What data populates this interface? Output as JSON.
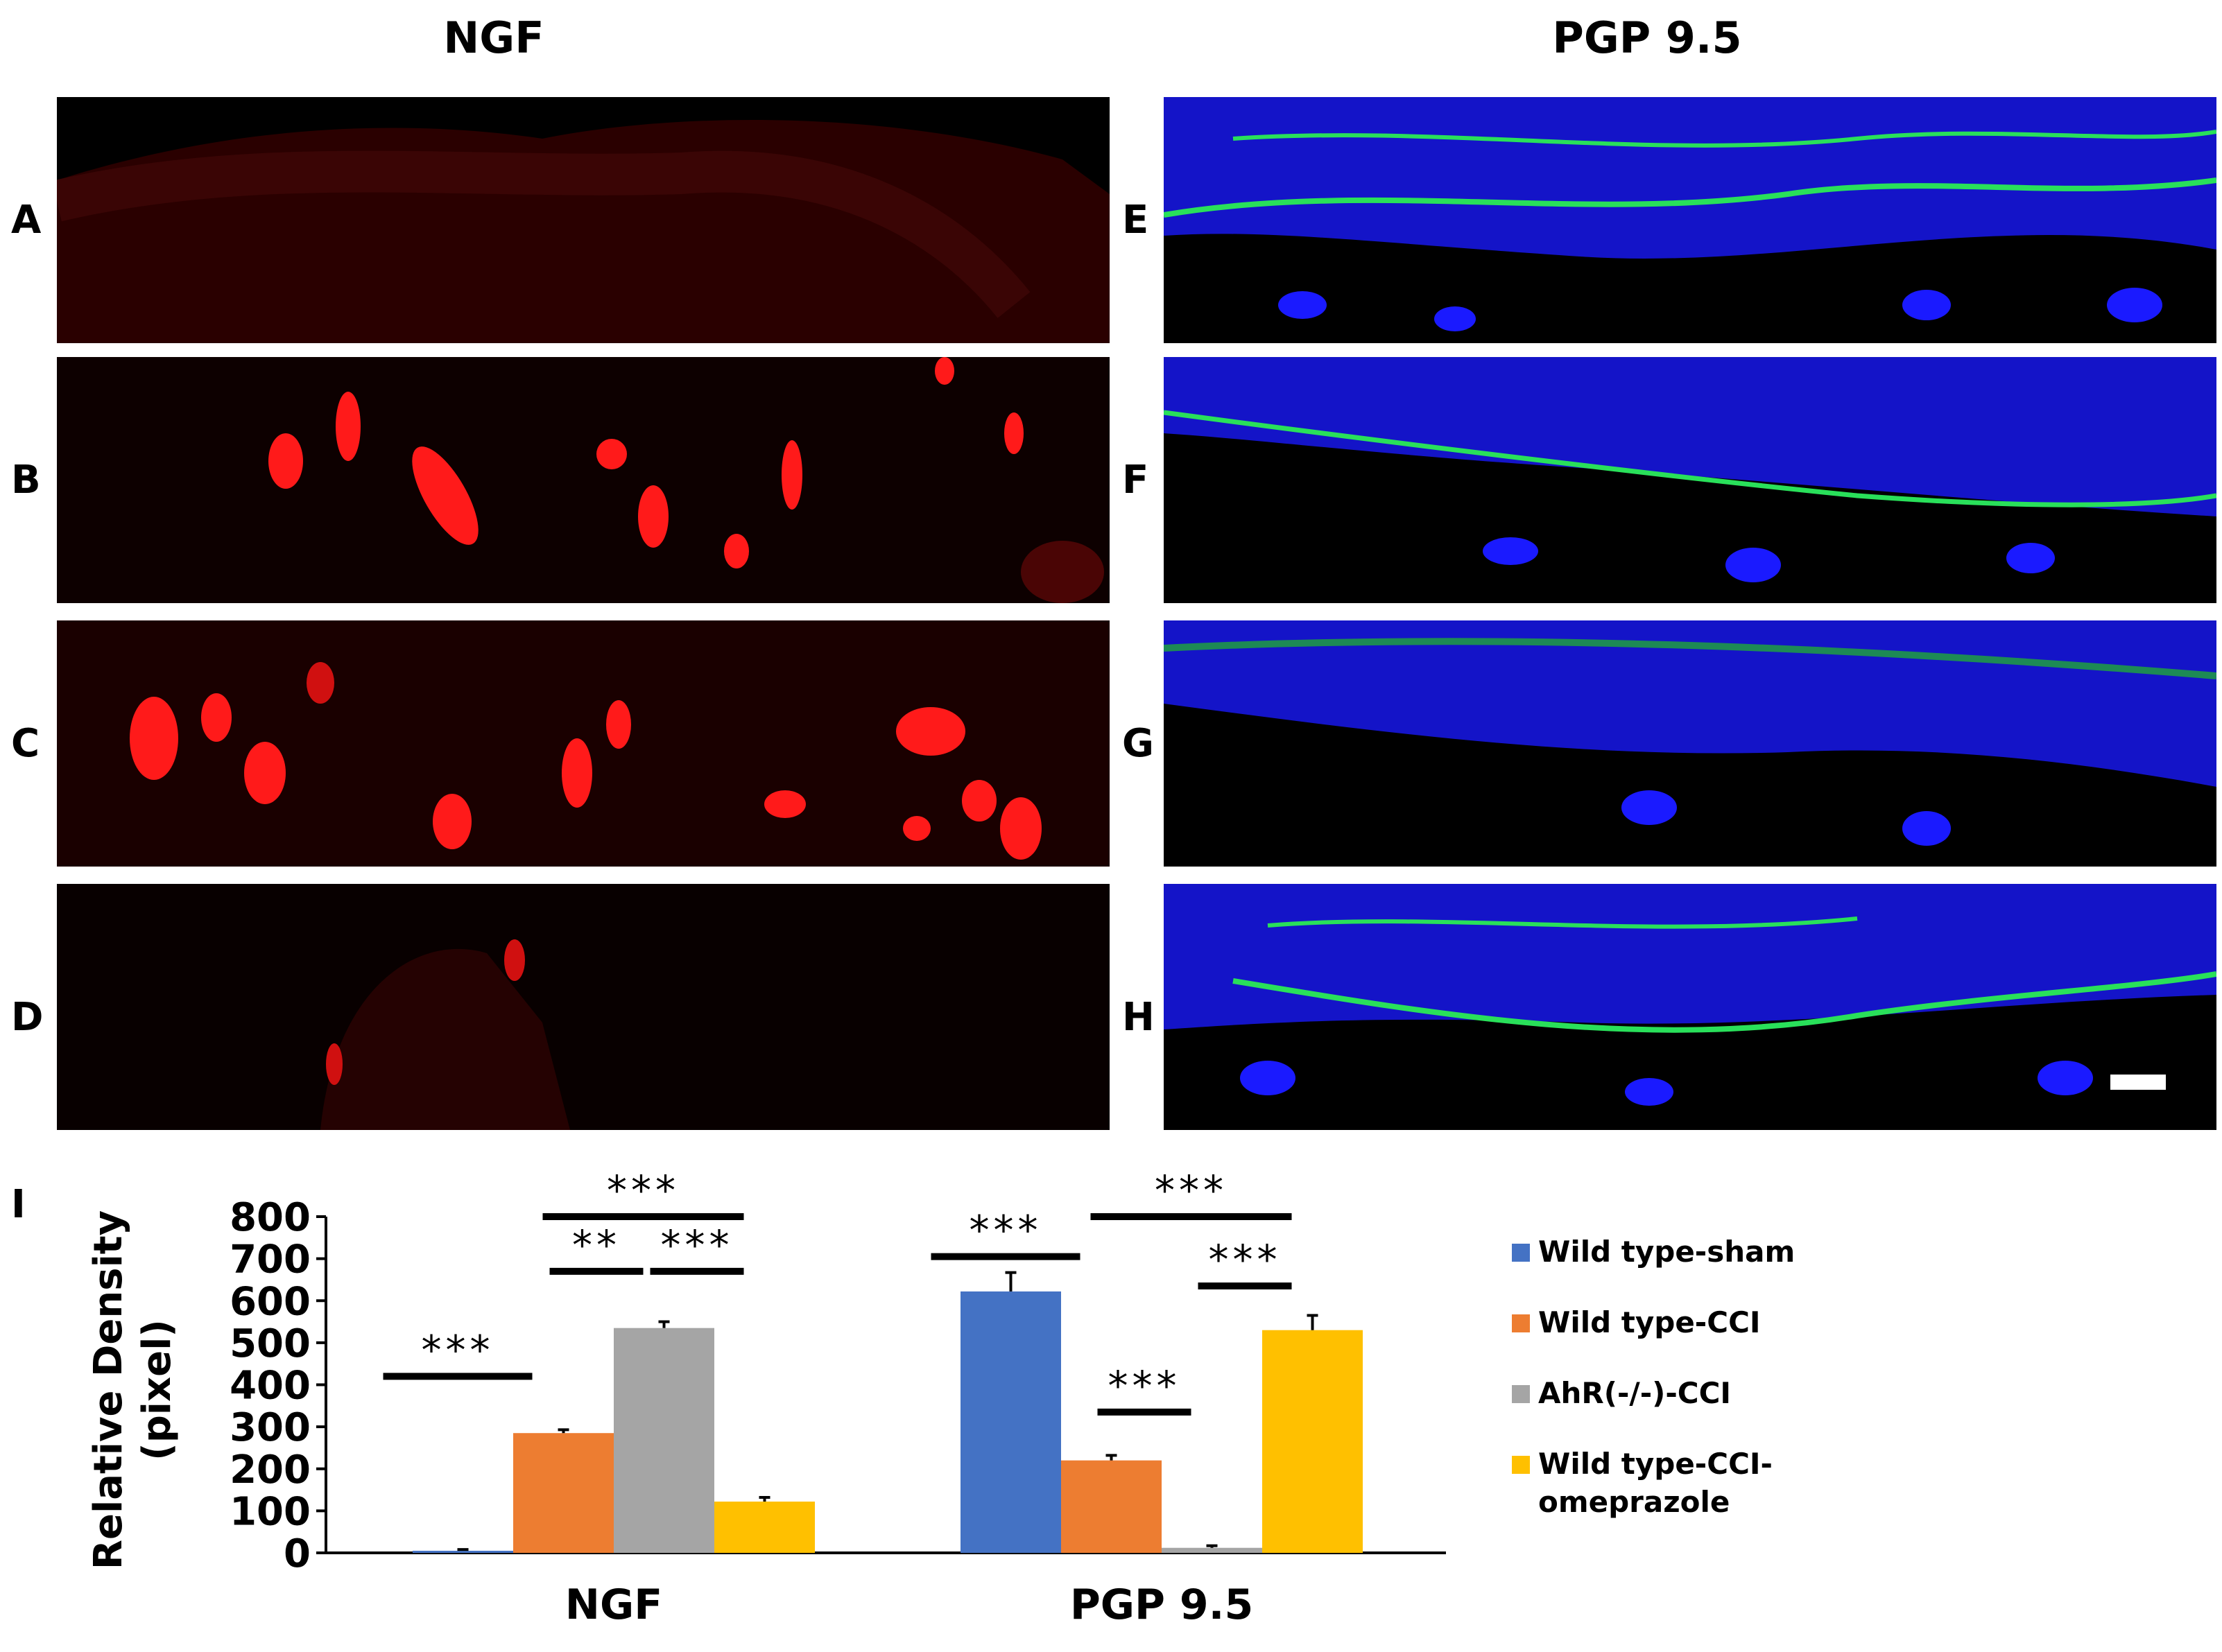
{
  "headings": {
    "ngf": "NGF",
    "pgp": "PGP 9.5"
  },
  "panel_letters": [
    "A",
    "B",
    "C",
    "D",
    "E",
    "F",
    "G",
    "H",
    "I"
  ],
  "colors": {
    "ngf_signal": "#ff1a1a",
    "nuclei": "#1a1aff",
    "pgp_signal": "#29e05a",
    "wild_type_sham": "#4472c4",
    "wild_type_cci": "#ed7d31",
    "ahr_cci": "#a5a5a5",
    "wild_type_cci_omeprazole": "#ffc000"
  },
  "chart_data": {
    "type": "bar",
    "panel": "I",
    "ylabel": "Relative Density (pixel)",
    "ylabel_lines": [
      "Relative Density",
      "(pixel)"
    ],
    "ylim": [
      0,
      800
    ],
    "yticks": [
      "800",
      "700",
      "600",
      "500",
      "400",
      "300",
      "200",
      "100",
      "0"
    ],
    "categories": [
      "NGF",
      "PGP 9.5"
    ],
    "series": [
      {
        "name": "Wild type-sham",
        "values": [
          5,
          622
        ],
        "errors": [
          3,
          45
        ]
      },
      {
        "name": "Wild type-CCI",
        "values": [
          285,
          220
        ],
        "errors": [
          8,
          12
        ]
      },
      {
        "name": "AhR(-/-)-CCI",
        "values": [
          535,
          12
        ],
        "errors": [
          15,
          5
        ]
      },
      {
        "name": "Wild type-CCI-omeprazole",
        "values": [
          122,
          530
        ],
        "errors": [
          10,
          35
        ]
      }
    ],
    "legend_lines": [
      [
        "Wild type-sham"
      ],
      [
        "Wild type-CCI"
      ],
      [
        "AhR(-/-)-CCI"
      ],
      [
        "Wild type-CCI-",
        "omeprazole"
      ]
    ],
    "legend_position": "right",
    "significance": [
      {
        "category": "NGF",
        "from": 0,
        "to": 1,
        "label": "***",
        "level": 420
      },
      {
        "category": "NGF",
        "from": 1,
        "to": 2,
        "label": "**",
        "level": 670
      },
      {
        "category": "NGF",
        "from": 2,
        "to": 3,
        "label": "***",
        "level": 670
      },
      {
        "category": "NGF",
        "from": 1,
        "to": 3,
        "label": "***",
        "level": 800
      },
      {
        "category": "PGP 9.5",
        "from": 0,
        "to": 1,
        "label": "***",
        "level": 705
      },
      {
        "category": "PGP 9.5",
        "from": 1,
        "to": 2,
        "label": "***",
        "level": 335
      },
      {
        "category": "PGP 9.5",
        "from": 2,
        "to": 3,
        "label": "***",
        "level": 635
      },
      {
        "category": "PGP 9.5",
        "from": 1,
        "to": 3,
        "label": "***",
        "level": 800
      }
    ],
    "grid": false
  }
}
